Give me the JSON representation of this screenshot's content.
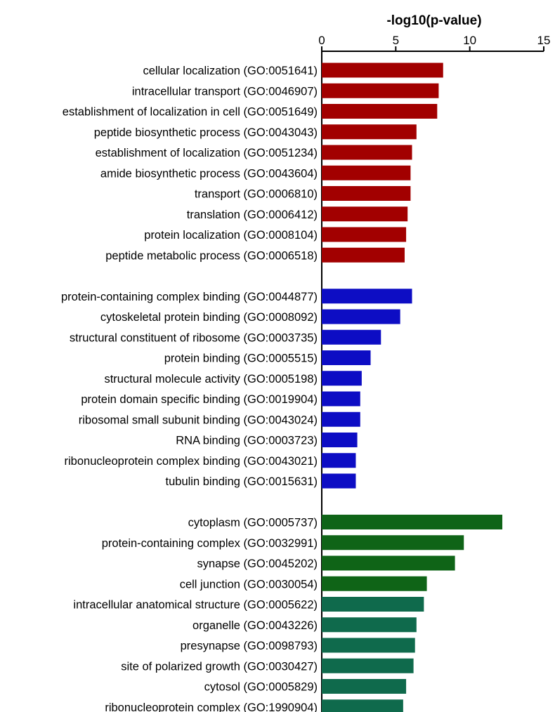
{
  "chart_data": {
    "type": "bar",
    "orientation": "horizontal",
    "xlabel": "-log10(p-value)",
    "xlim": [
      0,
      15
    ],
    "xticks": [
      0,
      5,
      10,
      15
    ],
    "axis_position": "top",
    "grid": false,
    "legend": "none",
    "groups": [
      {
        "color": "#a20000",
        "categories": [
          "cellular localization (GO:0051641)",
          "intracellular transport (GO:0046907)",
          "establishment of localization in cell (GO:0051649)",
          "peptide biosynthetic process (GO:0043043)",
          "establishment of localization (GO:0051234)",
          "amide biosynthetic process (GO:0043604)",
          "transport (GO:0006810)",
          "translation (GO:0006412)",
          "protein localization (GO:0008104)",
          "peptide metabolic process (GO:0006518)"
        ],
        "values": [
          8.2,
          7.9,
          7.8,
          6.4,
          6.1,
          6.0,
          6.0,
          5.8,
          5.7,
          5.6
        ]
      },
      {
        "color": "#0d0dc4",
        "categories": [
          "protein-containing complex binding (GO:0044877)",
          "cytoskeletal protein binding (GO:0008092)",
          "structural constituent of ribosome (GO:0003735)",
          "protein binding (GO:0005515)",
          "structural molecule activity (GO:0005198)",
          "protein domain specific binding (GO:0019904)",
          "ribosomal small subunit binding (GO:0043024)",
          "RNA binding (GO:0003723)",
          "ribonucleoprotein complex binding (GO:0043021)",
          "tubulin binding (GO:0015631)"
        ],
        "values": [
          6.1,
          5.3,
          4.0,
          3.3,
          2.7,
          2.6,
          2.6,
          2.4,
          2.3,
          2.3
        ]
      },
      {
        "color": "#0f6417",
        "categories": [
          "cytoplasm (GO:0005737)",
          "protein-containing complex (GO:0032991)",
          "synapse (GO:0045202)",
          "cell junction (GO:0030054)"
        ],
        "values": [
          12.2,
          9.6,
          9.0,
          7.1
        ]
      },
      {
        "color": "#0f6a4c",
        "categories": [
          "intracellular anatomical structure (GO:0005622)",
          "organelle (GO:0043226)",
          "presynapse (GO:0098793)",
          "site of polarized growth (GO:0030427)",
          "cytosol (GO:0005829)",
          "ribonucleoprotein complex (GO:1990904)"
        ],
        "values": [
          6.9,
          6.4,
          6.3,
          6.2,
          5.7,
          5.5
        ]
      }
    ]
  }
}
